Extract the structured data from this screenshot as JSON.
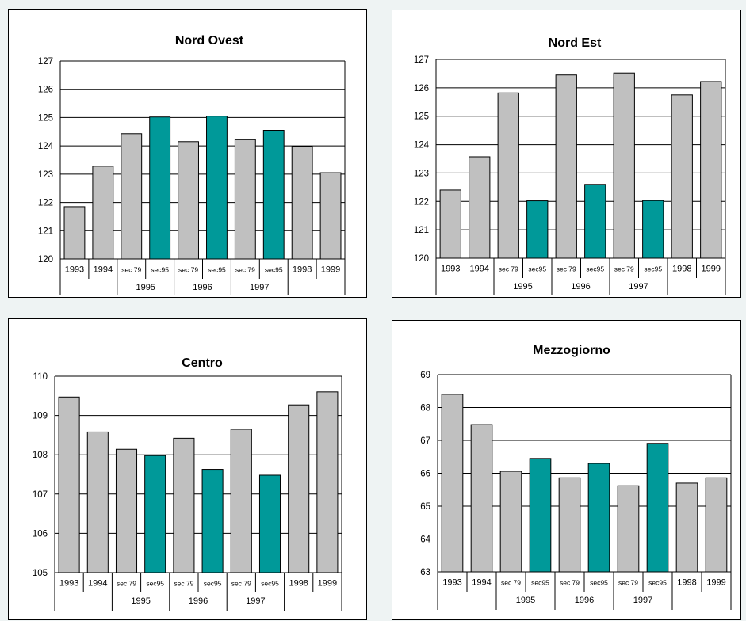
{
  "colors": {
    "old_series": "#c0c0c0",
    "new_series": "#009999",
    "grid": "#000000"
  },
  "chart_data": [
    {
      "type": "bar",
      "title": "Nord Ovest",
      "categories": [
        "1993",
        "1994",
        "sec 79",
        "sec95",
        "sec 79",
        "sec95",
        "sec 79",
        "sec95",
        "1998",
        "1999"
      ],
      "groups": [
        {
          "label": "1995",
          "categories": [
            2,
            3
          ]
        },
        {
          "label": "1996",
          "categories": [
            4,
            5
          ]
        },
        {
          "label": "1997",
          "categories": [
            6,
            7
          ]
        }
      ],
      "values": [
        121.85,
        123.28,
        124.43,
        125.02,
        124.15,
        125.05,
        124.22,
        124.55,
        123.98,
        123.05
      ],
      "highlight": [
        false,
        false,
        false,
        true,
        false,
        true,
        false,
        true,
        false,
        false
      ],
      "ylim": [
        120,
        127
      ],
      "yticks": [
        120,
        121,
        122,
        123,
        124,
        125,
        126,
        127
      ],
      "grid": true,
      "xlabel": "",
      "ylabel": ""
    },
    {
      "type": "bar",
      "title": "Nord Est",
      "categories": [
        "1993",
        "1994",
        "sec 79",
        "sec95",
        "sec 79",
        "sec95",
        "sec 79",
        "sec95",
        "1998",
        "1999"
      ],
      "groups": [
        {
          "label": "1995",
          "categories": [
            2,
            3
          ]
        },
        {
          "label": "1996",
          "categories": [
            4,
            5
          ]
        },
        {
          "label": "1997",
          "categories": [
            6,
            7
          ]
        }
      ],
      "values": [
        122.4,
        123.57,
        125.82,
        122.02,
        126.45,
        122.6,
        126.52,
        122.03,
        125.75,
        126.22
      ],
      "highlight": [
        false,
        false,
        false,
        true,
        false,
        true,
        false,
        true,
        false,
        false
      ],
      "ylim": [
        120,
        127
      ],
      "yticks": [
        120,
        121,
        122,
        123,
        124,
        125,
        126,
        127
      ],
      "grid": true,
      "xlabel": "",
      "ylabel": ""
    },
    {
      "type": "bar",
      "title": "Centro",
      "categories": [
        "1993",
        "1994",
        "sec 79",
        "sec95",
        "sec 79",
        "sec95",
        "sec 79",
        "sec95",
        "1998",
        "1999"
      ],
      "groups": [
        {
          "label": "1995",
          "categories": [
            2,
            3
          ]
        },
        {
          "label": "1996",
          "categories": [
            4,
            5
          ]
        },
        {
          "label": "1997",
          "categories": [
            6,
            7
          ]
        }
      ],
      "values": [
        109.47,
        108.58,
        108.14,
        107.98,
        108.42,
        107.63,
        108.65,
        107.48,
        109.27,
        109.6
      ],
      "highlight": [
        false,
        false,
        false,
        true,
        false,
        true,
        false,
        true,
        false,
        false
      ],
      "ylim": [
        105,
        110
      ],
      "yticks": [
        105,
        106,
        107,
        108,
        109,
        110
      ],
      "grid": true,
      "xlabel": "",
      "ylabel": ""
    },
    {
      "type": "bar",
      "title": "Mezzogiorno",
      "categories": [
        "1993",
        "1994",
        "sec 79",
        "sec95",
        "sec 79",
        "sec95",
        "sec 79",
        "sec95",
        "1998",
        "1999"
      ],
      "groups": [
        {
          "label": "1995",
          "categories": [
            2,
            3
          ]
        },
        {
          "label": "1996",
          "categories": [
            4,
            5
          ]
        },
        {
          "label": "1997",
          "categories": [
            6,
            7
          ]
        }
      ],
      "values": [
        68.4,
        67.48,
        66.06,
        66.45,
        65.86,
        66.3,
        65.62,
        66.91,
        65.7,
        65.86
      ],
      "highlight": [
        false,
        false,
        false,
        true,
        false,
        true,
        false,
        true,
        false,
        false
      ],
      "ylim": [
        63,
        69
      ],
      "yticks": [
        63,
        64,
        65,
        66,
        67,
        68,
        69
      ],
      "grid": true,
      "xlabel": "",
      "ylabel": ""
    }
  ]
}
